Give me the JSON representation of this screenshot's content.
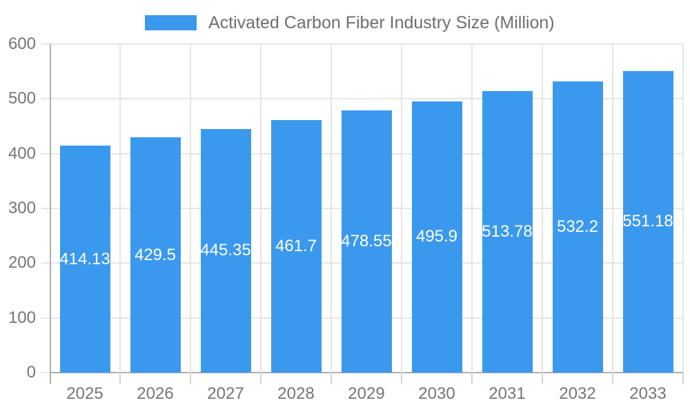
{
  "chart_data": {
    "type": "bar",
    "title": "",
    "legend": "Activated Carbon Fiber Industry Size (Million)",
    "legend_position": "top",
    "categories": [
      "2025",
      "2026",
      "2027",
      "2028",
      "2029",
      "2030",
      "2031",
      "2032",
      "2033"
    ],
    "values": [
      414.13,
      429.5,
      445.35,
      461.7,
      478.55,
      495.9,
      513.78,
      532.2,
      551.18
    ],
    "value_labels": [
      "414.13",
      "429.5",
      "445.35",
      "461.7",
      "478.55",
      "495.9",
      "513.78",
      "532.2",
      "551.18"
    ],
    "xlabel": "",
    "ylabel": "",
    "ylim": [
      0,
      600
    ],
    "yticks": [
      0,
      100,
      200,
      300,
      400,
      500,
      600
    ],
    "grid": true,
    "colors": {
      "bar": "#3B99ED",
      "gridline": "#e5e5e5",
      "axis_line": "#aeaeae",
      "x_tick": "#d2d2d2",
      "tick_text": "#757575",
      "legend_text": "#6e6e6e",
      "value_label": "#ffffff",
      "background": "#ffffff"
    }
  }
}
